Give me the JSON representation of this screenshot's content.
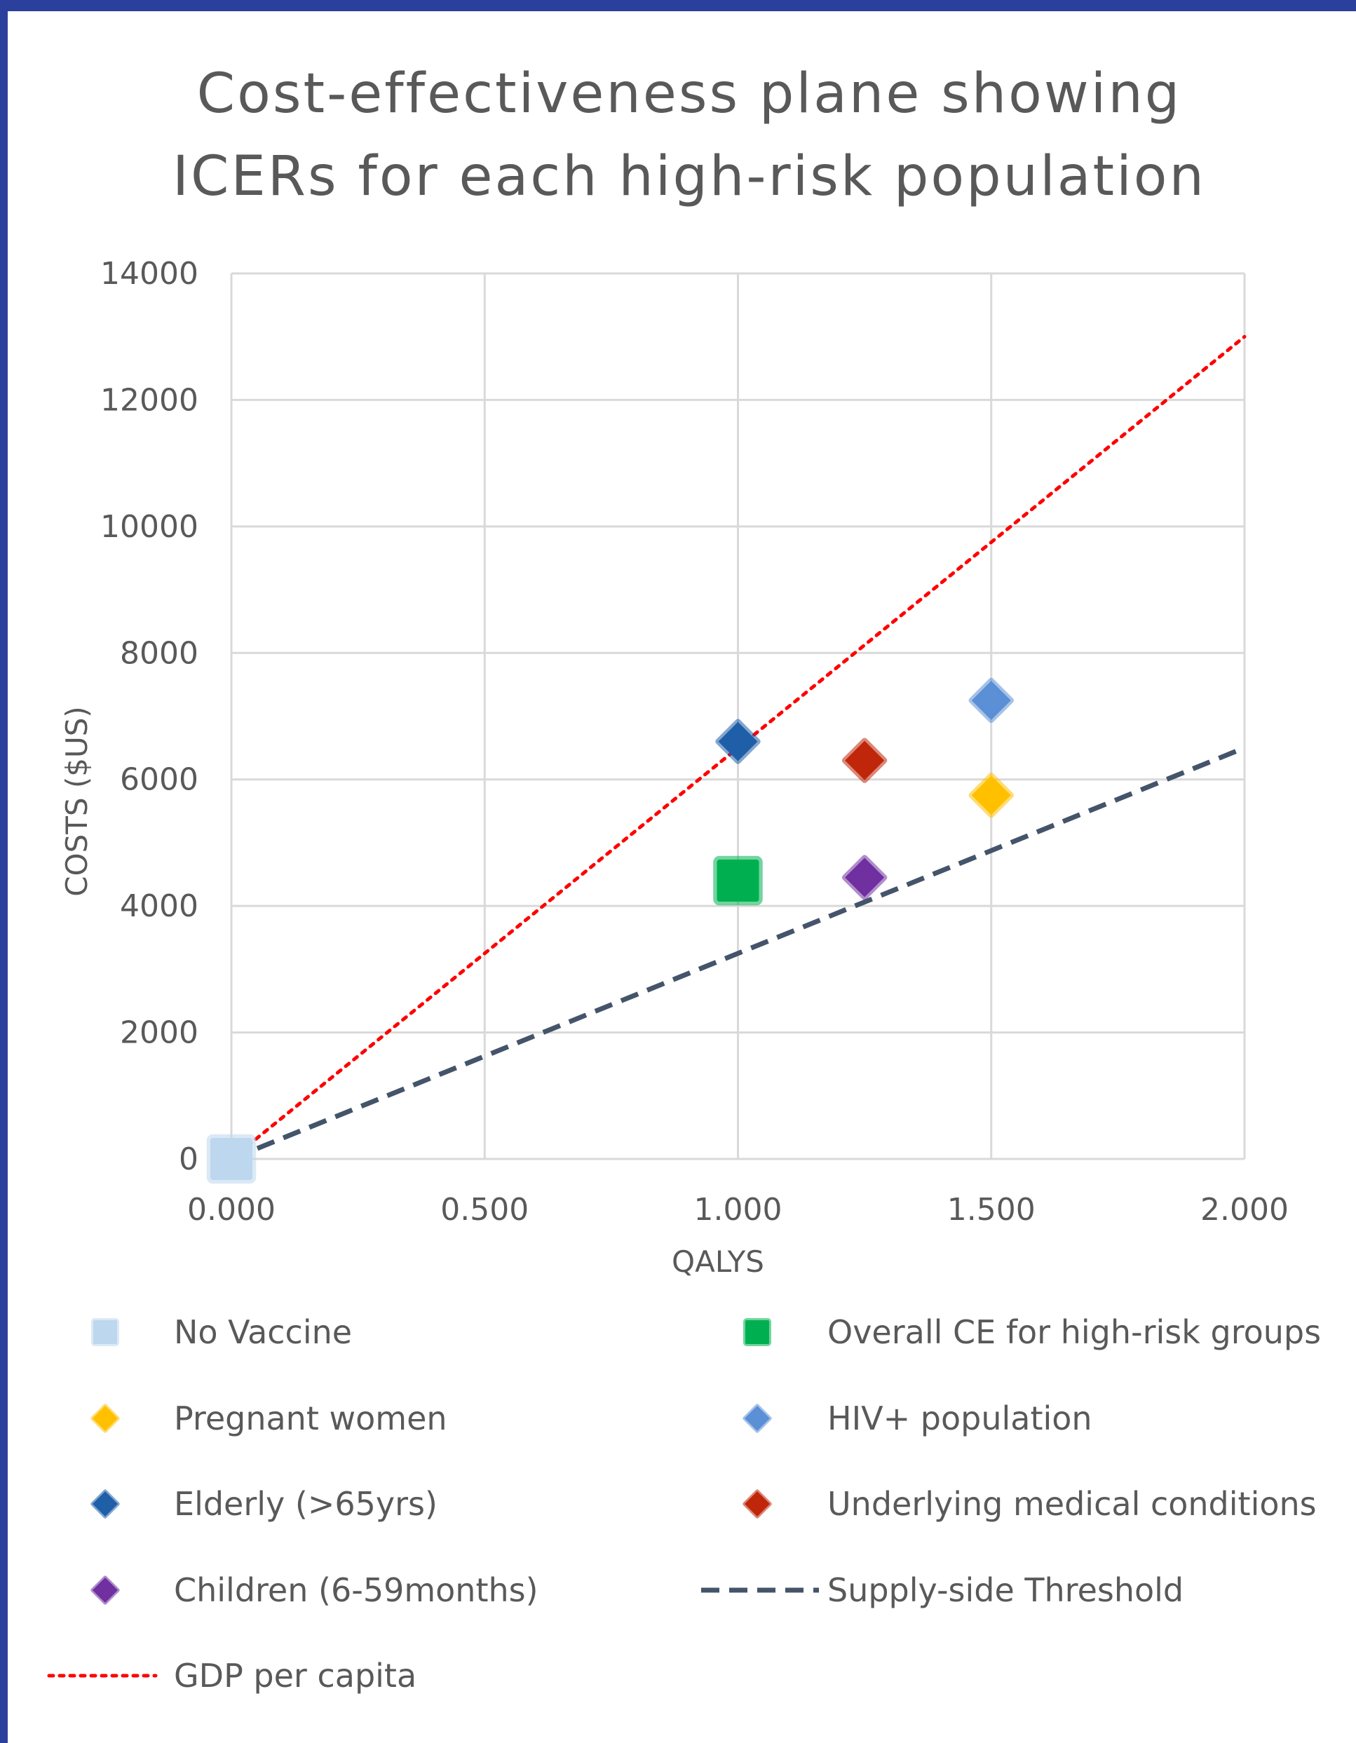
{
  "chart_data": {
    "type": "scatter",
    "title": [
      "Cost-effectiveness plane showing",
      "ICERs for each high-risk population"
    ],
    "xlabel": "QALYS",
    "ylabel": "COSTS ($US)",
    "xlim": [
      0,
      2
    ],
    "ylim": [
      0,
      14000
    ],
    "x_ticks": [
      "0.000",
      "0.500",
      "1.000",
      "1.500",
      "2.000"
    ],
    "y_ticks": [
      "0",
      "2000",
      "4000",
      "6000",
      "8000",
      "10000",
      "12000",
      "14000"
    ],
    "grid": true,
    "legend_position": "bottom",
    "series": [
      {
        "name": "No Vaccine",
        "marker": "square",
        "color": "#bdd7ee",
        "x": [
          0.0
        ],
        "y": [
          0
        ]
      },
      {
        "name": "Overall CE for high-risk groups",
        "marker": "square",
        "color": "#00b050",
        "x": [
          1.0
        ],
        "y": [
          4400
        ]
      },
      {
        "name": "Pregnant women",
        "marker": "diamond",
        "color": "#ffc000",
        "x": [
          1.5
        ],
        "y": [
          5750
        ]
      },
      {
        "name": "HIV+ population",
        "marker": "diamond",
        "color": "#5b8fd6",
        "x": [
          1.5
        ],
        "y": [
          7250
        ]
      },
      {
        "name": "Elderly (>65yrs)",
        "marker": "diamond",
        "color": "#1f5fa8",
        "x": [
          1.0
        ],
        "y": [
          6600
        ]
      },
      {
        "name": "Underlying medical conditions",
        "marker": "diamond",
        "color": "#c0260a",
        "x": [
          1.25
        ],
        "y": [
          6300
        ]
      },
      {
        "name": "Children (6-59months)",
        "marker": "diamond",
        "color": "#7030a0",
        "x": [
          1.25
        ],
        "y": [
          4450
        ]
      },
      {
        "name": "Supply-side Threshold",
        "marker": "line",
        "style": "dashed",
        "color": "#44546a",
        "x": [
          0,
          2
        ],
        "y": [
          0,
          6500
        ]
      },
      {
        "name": "GDP per capita",
        "marker": "line",
        "style": "dotted",
        "color": "#ff0000",
        "x": [
          0,
          2
        ],
        "y": [
          0,
          13000
        ]
      }
    ]
  }
}
